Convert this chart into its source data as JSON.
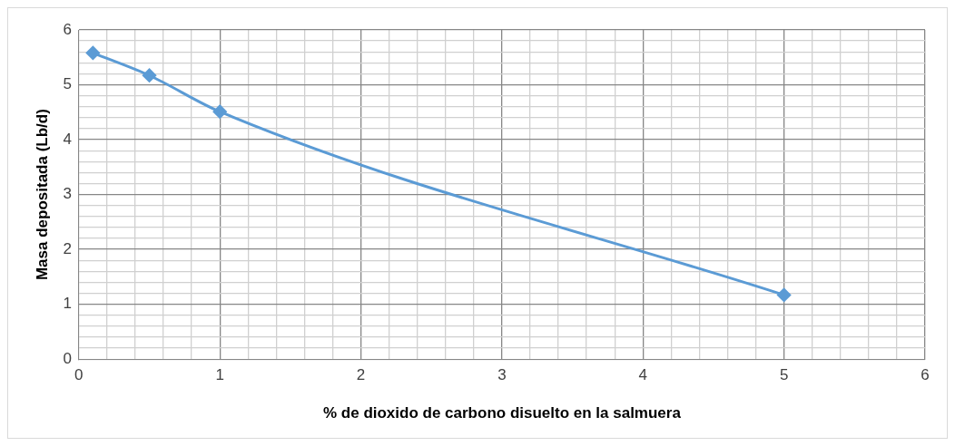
{
  "chart_data": {
    "type": "line",
    "xlabel": "% de dioxido de carbono disuelto en la salmuera",
    "ylabel": "Masa depositada (Lb/d)",
    "x": [
      0.1,
      0.5,
      1,
      5
    ],
    "series": [
      {
        "color": "#5b9bd5",
        "values": [
          5.58,
          5.17,
          4.51,
          1.17
        ]
      }
    ],
    "xlim": [
      0,
      6
    ],
    "ylim": [
      0,
      6
    ],
    "xticks": [
      0,
      {
        "value": 0.2,
        "label": null
      },
      {
        "value": 0.4,
        "label": null
      },
      {
        "value": 0.6,
        "label": null
      },
      {
        "value": 0.8,
        "label": null
      },
      1,
      {
        "value": 1.2,
        "label": null
      },
      {
        "value": 1.4,
        "label": null
      },
      {
        "value": 1.6,
        "label": null
      },
      {
        "value": 1.8,
        "label": null
      },
      2,
      {
        "value": 2.2,
        "label": null
      },
      {
        "value": 2.4,
        "label": null
      },
      {
        "value": 2.6,
        "label": null
      },
      {
        "value": 2.8,
        "label": null
      },
      3,
      {
        "value": 3.2,
        "label": null
      },
      {
        "value": 3.4,
        "label": null
      },
      {
        "value": 3.6,
        "label": null
      },
      {
        "value": 3.8,
        "label": null
      },
      4,
      {
        "value": 4.2,
        "label": null
      },
      {
        "value": 4.4,
        "label": null
      },
      {
        "value": 4.6,
        "label": null
      },
      {
        "value": 4.8,
        "label": null
      },
      5,
      {
        "value": 5.2,
        "label": null
      },
      {
        "value": 5.4,
        "label": null
      },
      {
        "value": 5.6,
        "label": null
      },
      {
        "value": 5.8,
        "label": null
      },
      6
    ],
    "yticks": [
      0,
      {
        "value": 0.2,
        "label": null
      },
      {
        "value": 0.4,
        "label": null
      },
      {
        "value": 0.6,
        "label": null
      },
      {
        "value": 0.8,
        "label": null
      },
      1,
      {
        "value": 1.2,
        "label": null
      },
      {
        "value": 1.4,
        "label": null
      },
      {
        "value": 1.6,
        "label": null
      },
      {
        "value": 1.8,
        "label": null
      },
      2,
      {
        "value": 2.2,
        "label": null
      },
      {
        "value": 2.4,
        "label": null
      },
      {
        "value": 2.6,
        "label": null
      },
      {
        "value": 2.8,
        "label": null
      },
      3,
      {
        "value": 3.2,
        "label": null
      },
      {
        "value": 3.4,
        "label": null
      },
      {
        "value": 3.6,
        "label": null
      },
      {
        "value": 3.8,
        "label": null
      },
      4,
      {
        "value": 4.2,
        "label": null
      },
      {
        "value": 4.4,
        "label": null
      },
      {
        "value": 4.6,
        "label": null
      },
      {
        "value": 4.8,
        "label": null
      },
      5,
      {
        "value": 5.2,
        "label": null
      },
      {
        "value": 5.4,
        "label": null
      },
      {
        "value": 5.6,
        "label": null
      },
      {
        "value": 5.8,
        "label": null
      },
      6
    ],
    "grid": true,
    "legend": false,
    "marker": "diamond",
    "line_style": "solid"
  }
}
